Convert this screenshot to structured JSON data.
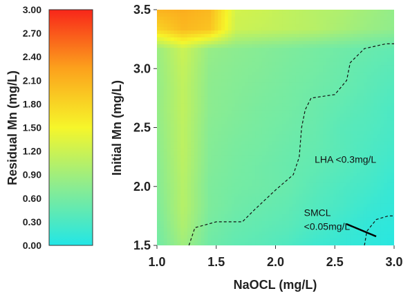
{
  "chart_data": {
    "type": "heatmap",
    "title": "",
    "xlabel": "NaOCL (mg/L)",
    "ylabel": "Initial Mn (mg/L)",
    "xlim": [
      1.0,
      3.0
    ],
    "ylim": [
      1.5,
      3.5
    ],
    "x_ticks": [
      "1.0",
      "1.5",
      "2.0",
      "2.5",
      "3.0"
    ],
    "y_ticks": [
      "1.5",
      "2.0",
      "2.5",
      "3.0",
      "3.5"
    ],
    "colorbar": {
      "label": "Residual Mn (mg/L)",
      "range": [
        0.0,
        3.0
      ],
      "ticks": [
        "0.00",
        "0.30",
        "0.60",
        "0.90",
        "1.20",
        "1.50",
        "1.80",
        "2.10",
        "2.40",
        "2.70",
        "3.00"
      ],
      "colors": [
        "#22e6e6",
        "#8cec90",
        "#f6f62a",
        "#fca21c",
        "#f8261a"
      ]
    },
    "contours": [
      {
        "label": "LHA <0.3mg/L",
        "style": "dashed",
        "points": [
          [
            1.27,
            1.5
          ],
          [
            1.32,
            1.65
          ],
          [
            1.5,
            1.7
          ],
          [
            1.72,
            1.7
          ],
          [
            1.82,
            1.8
          ],
          [
            2.0,
            1.97
          ],
          [
            2.15,
            2.1
          ],
          [
            2.2,
            2.25
          ],
          [
            2.22,
            2.5
          ],
          [
            2.25,
            2.65
          ],
          [
            2.3,
            2.75
          ],
          [
            2.5,
            2.78
          ],
          [
            2.6,
            2.9
          ],
          [
            2.63,
            3.05
          ],
          [
            2.75,
            3.17
          ],
          [
            2.93,
            3.21
          ],
          [
            3.0,
            3.21
          ]
        ],
        "label_at": [
          2.33,
          2.2
        ]
      },
      {
        "label": "SMCL\n<0.05mg/L",
        "style": "dashed",
        "points": [
          [
            2.75,
            1.5
          ],
          [
            2.77,
            1.62
          ],
          [
            2.85,
            1.72
          ],
          [
            2.95,
            1.75
          ],
          [
            3.0,
            1.75
          ]
        ],
        "label_at": [
          2.24,
          1.75
        ]
      }
    ],
    "field": [
      [
        0.55,
        0.9,
        0.55,
        0.45,
        0.4,
        0.32,
        0.2,
        0.15,
        0.1,
        0.05
      ],
      [
        0.6,
        1.0,
        0.6,
        0.5,
        0.45,
        0.4,
        0.3,
        0.2,
        0.12,
        0.08
      ],
      [
        0.65,
        1.05,
        0.65,
        0.55,
        0.5,
        0.45,
        0.35,
        0.28,
        0.18,
        0.12
      ],
      [
        0.7,
        1.05,
        0.65,
        0.58,
        0.55,
        0.5,
        0.4,
        0.32,
        0.25,
        0.15
      ],
      [
        0.72,
        1.08,
        0.68,
        0.6,
        0.55,
        0.5,
        0.45,
        0.38,
        0.3,
        0.2
      ],
      [
        0.75,
        1.1,
        0.7,
        0.62,
        0.58,
        0.52,
        0.48,
        0.4,
        0.32,
        0.25
      ],
      [
        0.78,
        1.1,
        0.72,
        0.65,
        0.6,
        0.55,
        0.5,
        0.4,
        0.35,
        0.28
      ],
      [
        0.8,
        1.12,
        0.75,
        0.68,
        0.62,
        0.58,
        0.52,
        0.45,
        0.38,
        0.3
      ],
      [
        0.8,
        1.12,
        0.76,
        0.7,
        0.65,
        0.6,
        0.55,
        0.5,
        0.42,
        0.35
      ],
      [
        0.82,
        1.15,
        0.78,
        0.72,
        0.68,
        0.62,
        0.58,
        0.52,
        0.45,
        0.4
      ],
      [
        0.85,
        1.2,
        0.82,
        0.75,
        0.7,
        0.65,
        0.6,
        0.55,
        0.5,
        0.45
      ],
      [
        1.8,
        2.05,
        1.95,
        1.2,
        1.15,
        1.1,
        1.05,
        0.95,
        0.85,
        0.78
      ],
      [
        2.1,
        2.15,
        2.05,
        1.25,
        1.2,
        1.12,
        1.05,
        1.0,
        0.9,
        0.8
      ]
    ]
  }
}
